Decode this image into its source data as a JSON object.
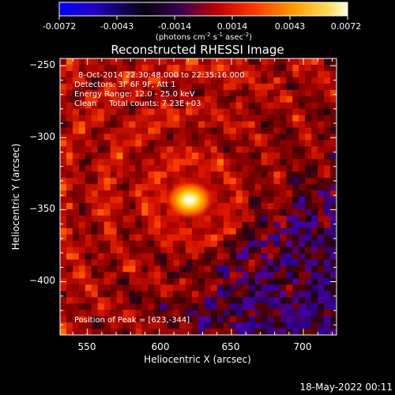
{
  "colorbar": {
    "ticks": [
      "-0.0072",
      "-0.0043",
      "-0.0014",
      "0.0014",
      "0.0043",
      "0.0072"
    ],
    "units_main": "(photons cm",
    "units_exp1": "-2",
    "units_mid": " s",
    "units_exp2": "-1",
    "units_end": " asec",
    "units_exp3": "-2",
    "units_close": ")",
    "colors": [
      "#0000ff",
      "#000000",
      "#8a0000",
      "#ff2a00",
      "#ffb000",
      "#ffffff"
    ]
  },
  "plot": {
    "title": "Reconstructed RHESSI Image",
    "xlabel": "Heliocentric X (arcsec)",
    "ylabel": "Heliocentric Y (arcsec)",
    "x_ticks": [
      "550",
      "600",
      "650",
      "700"
    ],
    "y_ticks": [
      "−250",
      "−300",
      "−350",
      "−400"
    ],
    "info_line1": "8-Oct-2014 22:30:48.000 to 22:35:16.000",
    "info_line2": "Detectors: 3F 6F 9F, Att 1",
    "info_line3": "Energy Range: 12.0 - 25.0 keV",
    "info_line4": "Clean     Total counts: 7.23E+03",
    "peak_text": "Position of Peak = [623,-344]"
  },
  "image_data": {
    "x_range": [
      531,
      723
    ],
    "y_range": [
      -437,
      -245
    ],
    "peak": [
      623,
      -344
    ],
    "color_scale": "black-red-yellow-white"
  },
  "footer": {
    "date": "18-May-2022 00:11"
  }
}
